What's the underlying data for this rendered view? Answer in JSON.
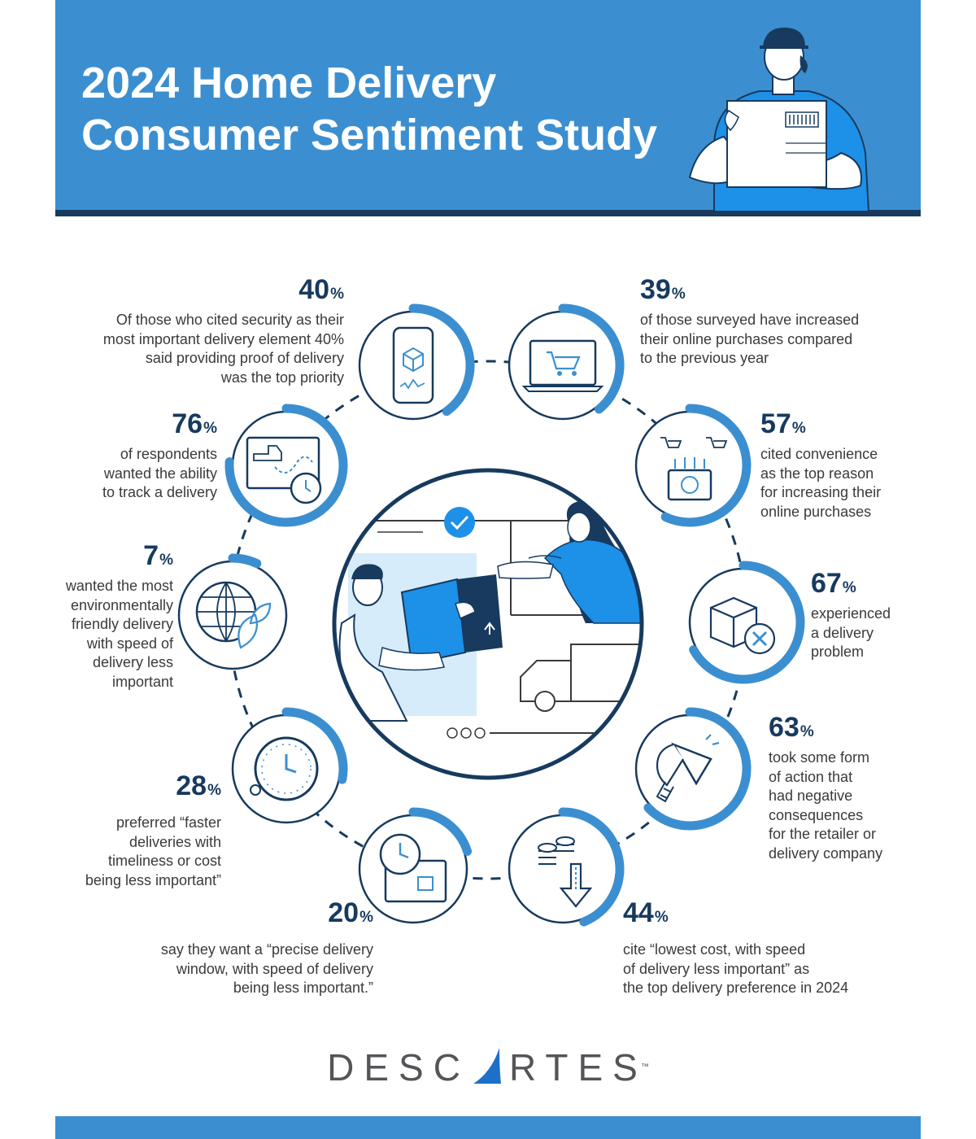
{
  "header": {
    "title_line1": "2024 Home Delivery",
    "title_line2": "Consumer Sentiment Study"
  },
  "colors": {
    "header_blue": "#3b8fd0",
    "navy": "#173a5e",
    "accent_blue": "#3b8fd0",
    "light_blue": "#d6ecfa"
  },
  "stats": [
    {
      "id": "proof",
      "value": "40",
      "unit": "%",
      "lines": [
        "Of those who cited security as their",
        "most important delivery element 40%",
        "said providing proof of delivery",
        "was the top priority"
      ],
      "icon": "smartphone-package-icon",
      "fill": 0.4
    },
    {
      "id": "online",
      "value": "39",
      "unit": "%",
      "lines": [
        "of those surveyed have increased",
        "their online purchases compared",
        "to the previous year"
      ],
      "icon": "laptop-cart-icon",
      "fill": 0.39
    },
    {
      "id": "tracking",
      "value": "76",
      "unit": "%",
      "lines": [
        "of respondents",
        "wanted the ability",
        "to track a delivery"
      ],
      "icon": "truck-tracking-icon",
      "fill": 0.76
    },
    {
      "id": "convenience",
      "value": "57",
      "unit": "%",
      "lines": [
        "cited convenience",
        "as the top reason",
        "for increasing their",
        "online purchases"
      ],
      "icon": "carts-laptop-icon",
      "fill": 0.57
    },
    {
      "id": "eco",
      "value": "7",
      "unit": "%",
      "lines": [
        "wanted the most",
        "environmentally",
        "friendly delivery",
        "with speed of",
        "delivery less",
        "important"
      ],
      "icon": "globe-leaf-icon",
      "fill": 0.07
    },
    {
      "id": "problem",
      "value": "67",
      "unit": "%",
      "lines": [
        "experienced",
        "a delivery",
        "problem"
      ],
      "icon": "box-x-icon",
      "fill": 0.67
    },
    {
      "id": "faster",
      "value": "28",
      "unit": "%",
      "lines": [
        "preferred “faster",
        "deliveries with",
        "timeliness or cost",
        "being less important”"
      ],
      "icon": "clock-icon",
      "fill": 0.28
    },
    {
      "id": "action",
      "value": "63",
      "unit": "%",
      "lines": [
        "took some form",
        "of action that",
        "had negative",
        "consequences",
        "for the retailer or",
        "delivery company"
      ],
      "icon": "megaphone-icon",
      "fill": 0.63
    },
    {
      "id": "window",
      "value": "20",
      "unit": "%",
      "lines": [
        "say they want a “precise delivery",
        "window, with speed of delivery",
        "being less important.”"
      ],
      "icon": "clock-window-icon",
      "fill": 0.2
    },
    {
      "id": "cost",
      "value": "44",
      "unit": "%",
      "lines": [
        "cite “lowest cost, with speed",
        "of delivery less important” as",
        "the top delivery preference in 2024"
      ],
      "icon": "coins-down-icon",
      "fill": 0.44
    }
  ],
  "brand": {
    "name_left": "DESC",
    "name_right": "RTES",
    "trademark": "™"
  }
}
